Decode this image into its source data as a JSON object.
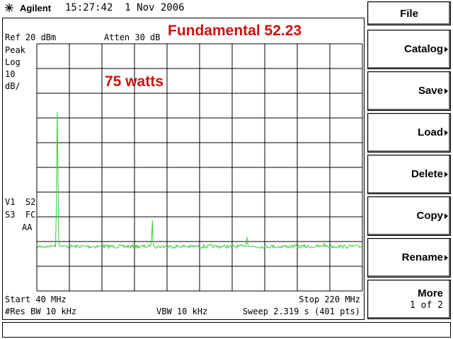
{
  "header": {
    "brand": "Agilent",
    "datetime": "15:27:42  1 Nov 2006"
  },
  "display": {
    "ref_level": "Ref 20 dBm",
    "attenuation": "Atten 30 dB",
    "annotation_title": "Fundamental 52.23",
    "annotation_power": "75 watts",
    "left_labels": [
      "Peak",
      "Log",
      "10",
      "dB/"
    ],
    "status_labels": [
      "V1  S2",
      "S3  FC",
      "AA"
    ],
    "start": "Start 40 MHz",
    "stop": "Stop 220 MHz",
    "res_bw": "#Res BW 10 kHz",
    "vbw": "VBW 10 kHz",
    "sweep": "Sweep 2.319 s (401 pts)"
  },
  "menu": {
    "title": "File",
    "softkeys": [
      {
        "label": "Catalog"
      },
      {
        "label": "Save"
      },
      {
        "label": "Load"
      },
      {
        "label": "Delete"
      },
      {
        "label": "Copy"
      },
      {
        "label": "Rename"
      },
      {
        "label": "More",
        "sub": "1 of 2"
      }
    ]
  }
}
